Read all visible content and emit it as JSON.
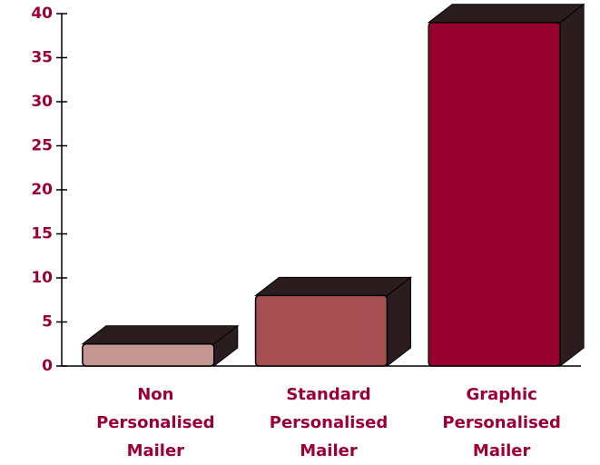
{
  "chart_data": {
    "type": "bar3d",
    "categories": [
      "Non Personalised Mailer",
      "Standard Personalised Mailer",
      "Graphic Personalised Mailer"
    ],
    "values": [
      2.5,
      8,
      39
    ],
    "colors": [
      "#c39691",
      "#a64f52",
      "#970030"
    ],
    "side_color": "#2b1c1f",
    "ylim": [
      0,
      40
    ],
    "yticks": [
      0,
      5,
      10,
      15,
      20,
      25,
      30,
      35,
      40
    ]
  }
}
